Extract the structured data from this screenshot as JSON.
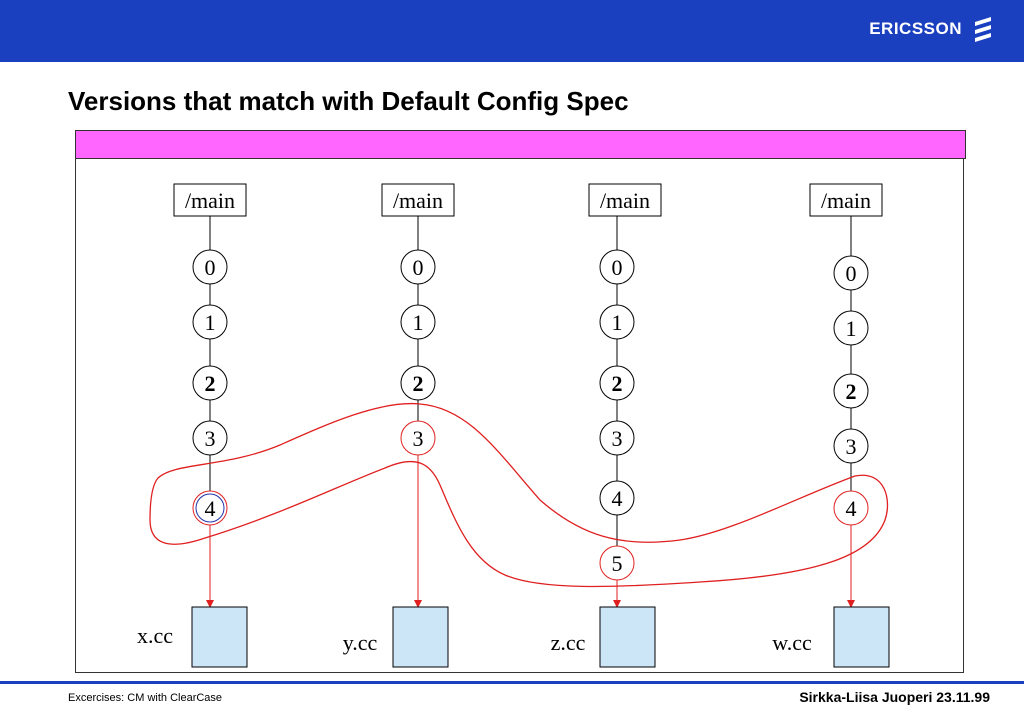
{
  "header": {
    "brand": "ERICSSON",
    "brand_color": "#1a3fbf",
    "logo_icon": "ericsson-stripes-logo"
  },
  "title": "Versions that match with Default Config Spec",
  "branches": [
    {
      "branch_label": "/main",
      "versions": [
        "0",
        "1",
        "2",
        "3",
        "4"
      ],
      "selected": "4",
      "file": "x.cc"
    },
    {
      "branch_label": "/main",
      "versions": [
        "0",
        "1",
        "2",
        "3"
      ],
      "selected": "3",
      "file": "y.cc"
    },
    {
      "branch_label": "/main",
      "versions": [
        "0",
        "1",
        "2",
        "3",
        "4",
        "5"
      ],
      "selected": "5",
      "file": "z.cc"
    },
    {
      "branch_label": "/main",
      "versions": [
        "0",
        "1",
        "2",
        "3",
        "4"
      ],
      "selected": "4",
      "file": "w.cc"
    }
  ],
  "colors": {
    "highlight": "#e02020",
    "file_box": "#cce6f8",
    "bar": "#ff66ff",
    "version_bold": "2"
  },
  "footer": {
    "left": "Excercises: CM with ClearCase",
    "right": "Sirkka-Liisa Juoperi 23.11.99"
  }
}
